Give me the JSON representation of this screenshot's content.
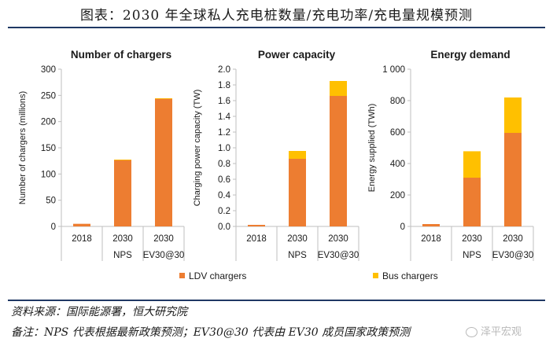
{
  "title": "图表：2030 年全球私人充电桩数量/充电功率/充电量规模预测",
  "source": "资料来源：国际能源署，恒大研究院",
  "remark": "备注：NPS 代表根据最新政策预测；EV30@30 代表由 EV30 成员国家政策预测",
  "watermark": "泽平宏观",
  "colors": {
    "ldv": "#ed7d31",
    "bus": "#ffc000",
    "axis": "#bfbfbf",
    "text": "#1a1a1a"
  },
  "legend": [
    "LDV chargers",
    "Bus chargers"
  ],
  "chart_data": [
    {
      "type": "bar",
      "stacked": true,
      "title": "Number of chargers",
      "ylabel": "Number of chargers (millions)",
      "xlabel": "",
      "ylim": [
        0,
        300
      ],
      "yticks": [
        "0",
        "50",
        "100",
        "150",
        "200",
        "250",
        "300"
      ],
      "categories": [
        [
          "2018",
          ""
        ],
        [
          "2030",
          "NPS"
        ],
        [
          "2030",
          "EV30@30"
        ]
      ],
      "series": [
        {
          "name": "LDV chargers",
          "values": [
            5,
            127,
            244
          ]
        },
        {
          "name": "Bus chargers",
          "values": [
            0,
            0.5,
            0.5
          ]
        }
      ],
      "grid": false
    },
    {
      "type": "bar",
      "stacked": true,
      "title": "Power capacity",
      "ylabel": "Charging power capacity (TW)",
      "xlabel": "",
      "ylim": [
        0,
        2.0
      ],
      "yticks": [
        "0.0",
        "0.2",
        "0.4",
        "0.6",
        "0.8",
        "1.0",
        "1.2",
        "1.4",
        "1.6",
        "1.8",
        "2.0"
      ],
      "categories": [
        [
          "2018",
          ""
        ],
        [
          "2030",
          "NPS"
        ],
        [
          "2030",
          "EV30@30"
        ]
      ],
      "series": [
        {
          "name": "LDV chargers",
          "values": [
            0.02,
            0.86,
            1.66
          ]
        },
        {
          "name": "Bus chargers",
          "values": [
            0,
            0.1,
            0.19
          ]
        }
      ],
      "grid": false
    },
    {
      "type": "bar",
      "stacked": true,
      "title": "Energy demand",
      "ylabel": "Energy supplied (TWh)",
      "xlabel": "",
      "ylim": [
        0,
        1000
      ],
      "yticks": [
        "0",
        "200",
        "400",
        "600",
        "800",
        "1 000"
      ],
      "categories": [
        [
          "2018",
          ""
        ],
        [
          "2030",
          "NPS"
        ],
        [
          "2030",
          "EV30@30"
        ]
      ],
      "series": [
        {
          "name": "LDV chargers",
          "values": [
            15,
            310,
            595
          ]
        },
        {
          "name": "Bus chargers",
          "values": [
            0,
            168,
            225
          ]
        }
      ],
      "grid": false
    }
  ]
}
